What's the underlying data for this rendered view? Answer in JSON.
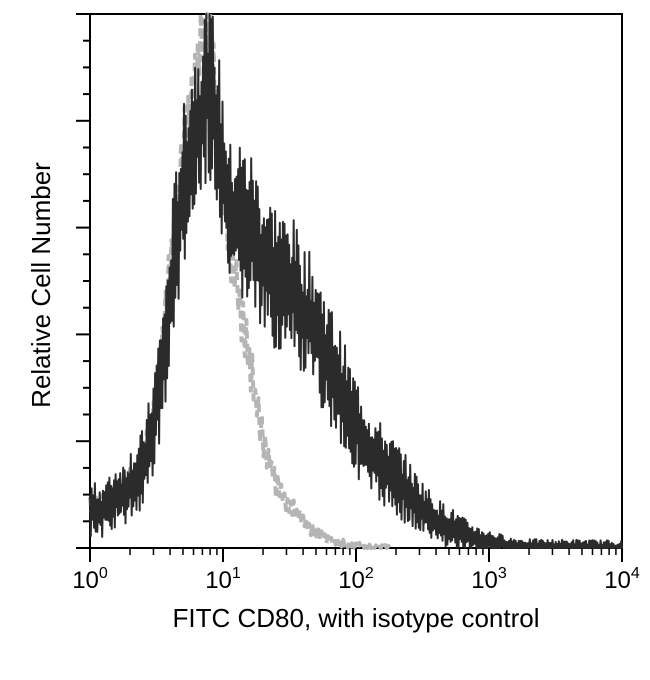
{
  "chart_data": {
    "type": "line",
    "title": "",
    "xlabel": "FITC CD80, with isotype control",
    "ylabel": "Relative Cell Number",
    "x_scale": "log",
    "xlim": [
      1,
      10000
    ],
    "ylim": [
      0,
      100
    ],
    "x_ticks": [
      {
        "value": 1,
        "base": "10",
        "exp": "0"
      },
      {
        "value": 10,
        "base": "10",
        "exp": "1"
      },
      {
        "value": 100,
        "base": "10",
        "exp": "2"
      },
      {
        "value": 1000,
        "base": "10",
        "exp": "3"
      },
      {
        "value": 10000,
        "base": "10",
        "exp": "4"
      }
    ],
    "y_major_ticks": [
      0,
      20,
      40,
      60,
      80,
      100
    ],
    "grid": false,
    "legend": "none",
    "series": [
      {
        "role": "sample",
        "color": "#2b2b2b",
        "style": "solid",
        "x": [
          1.0,
          1.2,
          1.4,
          1.6,
          1.8,
          2.0,
          2.3,
          2.6,
          3.0,
          3.4,
          3.8,
          4.2,
          4.7,
          5.3,
          6.0,
          6.8,
          7.6,
          8.5,
          9.5,
          10.5,
          11.5,
          13,
          15,
          17,
          19,
          22,
          25,
          29,
          34,
          40,
          47,
          55,
          65,
          77,
          90,
          105,
          125,
          150,
          180,
          220,
          270,
          330,
          400,
          500,
          650,
          850,
          1100,
          1500,
          2000,
          3000,
          5000,
          7000,
          10000
        ],
        "y": [
          7,
          7,
          8,
          10,
          10,
          12,
          13,
          16,
          23,
          32,
          40,
          52,
          62,
          70,
          76,
          80,
          88,
          82,
          74,
          66,
          60,
          62,
          60,
          59,
          54,
          52,
          51,
          49,
          48,
          44,
          42,
          38,
          34,
          30,
          25,
          22,
          18,
          16,
          14,
          12,
          9,
          7,
          5,
          4,
          2.5,
          1.5,
          1,
          0.5,
          0.3,
          0.2,
          0.2,
          0.1,
          0
        ]
      },
      {
        "role": "isotype control",
        "color": "#b5b5b5",
        "style": "dashed",
        "x": [
          1.0,
          1.2,
          1.4,
          1.6,
          1.8,
          2.0,
          2.3,
          2.6,
          3.0,
          3.4,
          3.8,
          4.2,
          4.7,
          5.3,
          6.0,
          6.8,
          7.6,
          8.5,
          9.5,
          10.5,
          11.5,
          13,
          15,
          17,
          19,
          22,
          25,
          29,
          34,
          40,
          47,
          55,
          65,
          80,
          100,
          130,
          180
        ],
        "y": [
          8,
          8,
          9,
          10,
          11,
          12,
          14,
          18,
          25,
          35,
          47,
          58,
          68,
          78,
          86,
          94,
          96,
          88,
          74,
          64,
          56,
          48,
          39,
          30,
          23,
          17,
          12,
          9,
          7,
          5,
          3.5,
          2.5,
          1.5,
          1,
          0.5,
          0.2,
          0
        ]
      }
    ]
  }
}
